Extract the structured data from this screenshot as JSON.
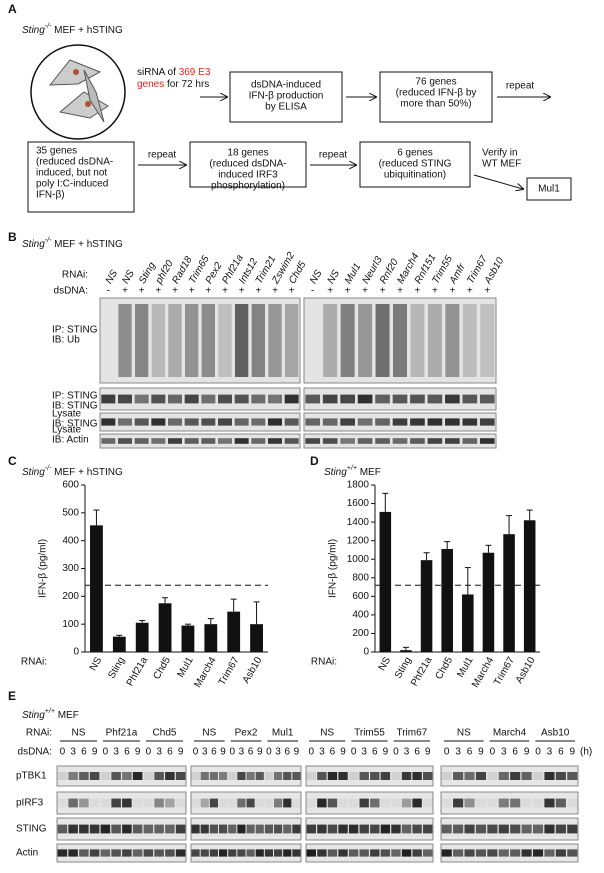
{
  "panel_a": {
    "label": "A",
    "cell_line": {
      "gene": "Sting",
      "genotype": "-/-",
      "rest": " MEF + hSTING"
    },
    "step1": {
      "line1": "siRNA of ",
      "highlight1": "369 E3",
      "highlight2": "genes",
      "line2": " for 72 hrs"
    },
    "box1": [
      "dsDNA-induced",
      "IFN-β production",
      "by ELISA"
    ],
    "box2": {
      "count": "76 genes",
      "detail": [
        "(reduced IFN-β by",
        "more than 50%)"
      ]
    },
    "arrow_label": "repeat",
    "box3": {
      "count": "35 genes",
      "detail": [
        "(reduced dsDNA-",
        "induced, but not",
        "poly I:C-induced",
        "IFN-β)"
      ]
    },
    "box4": {
      "count": "18 genes",
      "detail": [
        "(reduced dsDNA-",
        "induced IRF3",
        "phosphorylation)"
      ]
    },
    "box5": {
      "count": "6 genes",
      "detail": [
        "(reduced STING",
        "ubiquitination)"
      ]
    },
    "verify": [
      "Verify in",
      "WT MEF"
    ],
    "result": "Mul1",
    "highlight_color": "#e8241c"
  },
  "panel_b": {
    "label": "B",
    "cell_line": {
      "gene": "Sting",
      "genotype": "-/-",
      "rest": " MEF + hSTING"
    },
    "rnai_label": "RNAi:",
    "dsdna_label": "dsDNA:",
    "blots": [
      {
        "lanes": [
          "NS",
          "NS",
          "Sting",
          "phf20",
          "Rad18",
          "Trim65",
          "Pex2",
          "Phf21a",
          "Ints12",
          "Trim21",
          "Zswim2",
          "Chd5"
        ],
        "dsdna": [
          "-",
          "+",
          "+",
          "+",
          "+",
          "+",
          "+",
          "+",
          "+",
          "+",
          "+",
          "+"
        ]
      },
      {
        "lanes": [
          "NS",
          "NS",
          "Mul1",
          "Neurl3",
          "Rnf20",
          "March4",
          "Rnf151",
          "Trim55",
          "Amfr",
          "Trim67",
          "Asb10"
        ],
        "dsdna": [
          "-",
          "+",
          "+",
          "+",
          "+",
          "+",
          "+",
          "+",
          "+",
          "+",
          "+"
        ]
      }
    ],
    "rows": [
      [
        "IP: STING",
        "IB: Ub"
      ],
      [
        "IP: STING",
        "IB: STING"
      ],
      [
        "Lysate",
        "IB: STING"
      ],
      [
        "Lysate",
        "IB: Actin"
      ]
    ]
  },
  "chart_data": [
    {
      "type": "bar",
      "panel": "C",
      "cell_line": {
        "gene": "Sting",
        "genotype": "-/-",
        "rest": " MEF + hSTING"
      },
      "ylabel": "IFN-β (pg/ml)",
      "xlabel": "RNAi:",
      "categories": [
        "NS",
        "Sting",
        "Phf21a",
        "Chd5",
        "Mul1",
        "March4",
        "Trim67",
        "Asb10"
      ],
      "values": [
        455,
        55,
        105,
        175,
        95,
        100,
        145,
        100
      ],
      "errors": [
        55,
        5,
        8,
        20,
        5,
        20,
        45,
        80
      ],
      "threshold": 240,
      "ylim": [
        0,
        600
      ],
      "yticks": [
        0,
        100,
        200,
        300,
        400,
        500,
        600
      ],
      "color": "#111111"
    },
    {
      "type": "bar",
      "panel": "D",
      "cell_line": {
        "gene": "Sting",
        "genotype": "+/+",
        "rest": " MEF"
      },
      "ylabel": "IFN-β (pg/ml)",
      "xlabel": "RNAi:",
      "categories": [
        "NS",
        "Sting",
        "Phf21a",
        "Chd5",
        "Mul1",
        "March4",
        "Trim67",
        "Asb10"
      ],
      "values": [
        1510,
        20,
        990,
        1110,
        620,
        1070,
        1270,
        1420
      ],
      "errors": [
        200,
        30,
        80,
        80,
        290,
        80,
        200,
        110
      ],
      "threshold": 720,
      "ylim": [
        0,
        1800
      ],
      "yticks": [
        0,
        200,
        400,
        600,
        800,
        1000,
        1200,
        1400,
        1600,
        1800
      ],
      "color": "#111111"
    }
  ],
  "panel_e": {
    "label": "E",
    "cell_line": {
      "gene": "Sting",
      "genotype": "+/+",
      "rest": " MEF"
    },
    "rnai_label": "RNAi:",
    "dsdna_label": "dsDNA:",
    "time_points": [
      "0",
      "3",
      "6",
      "9"
    ],
    "unit": "(h)",
    "blocks": [
      [
        "NS",
        "Phf21a",
        "Chd5"
      ],
      [
        "NS",
        "Pex2",
        "Mul1"
      ],
      [
        "NS",
        "Trim55",
        "Trim67"
      ],
      [
        "NS",
        "March4",
        "Asb10"
      ]
    ],
    "rows": [
      "pTBK1",
      "pIRF3",
      "STING",
      "Actin"
    ]
  }
}
